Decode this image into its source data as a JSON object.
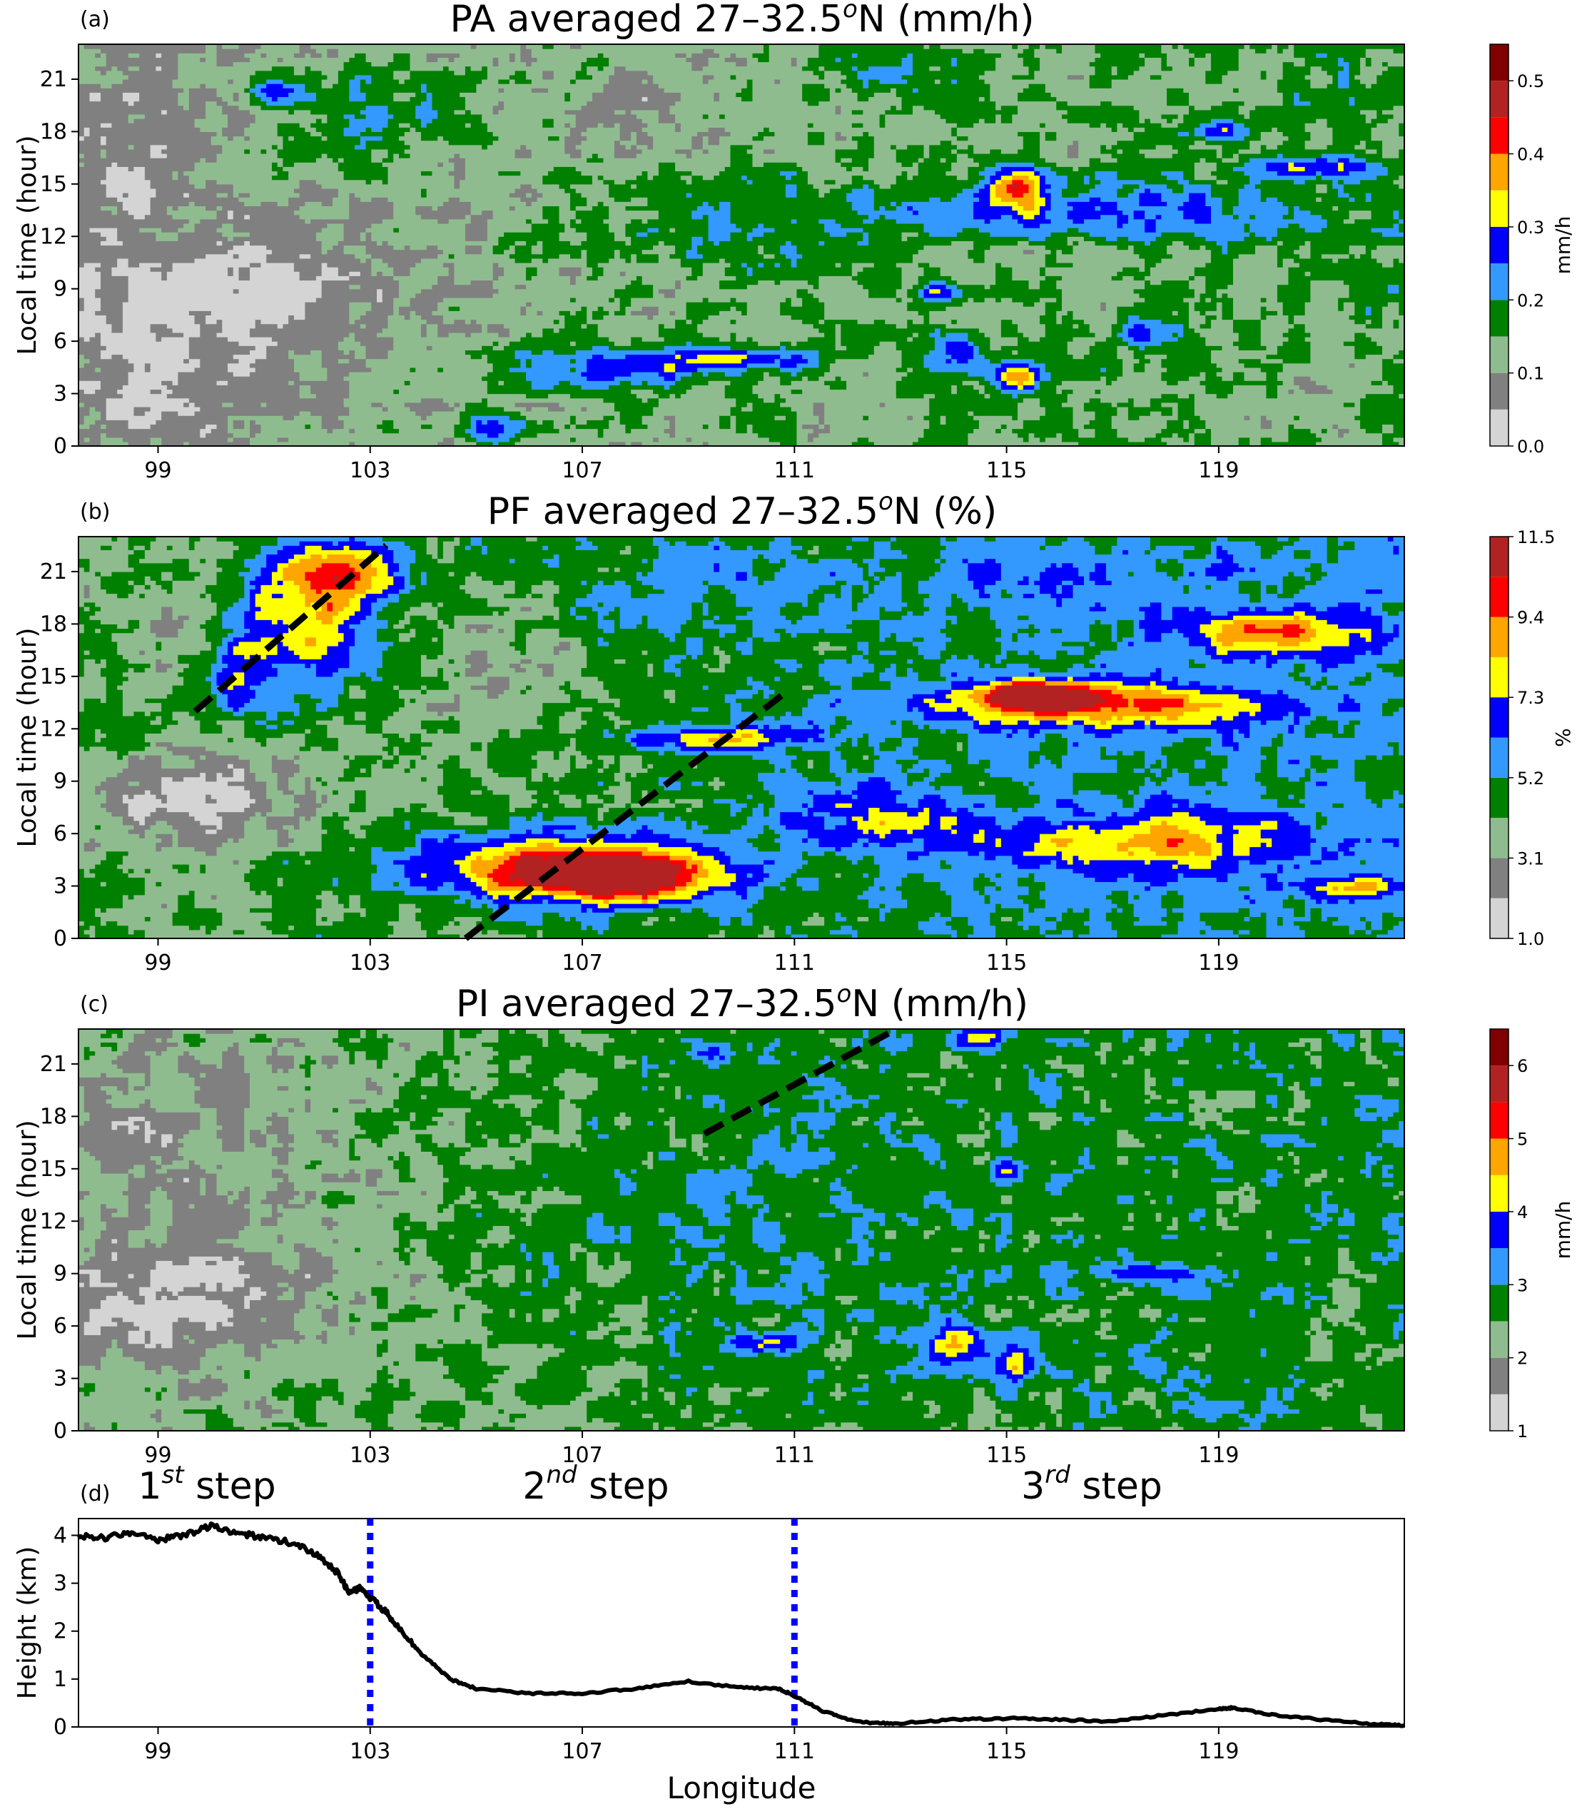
{
  "chart_data": [
    {
      "panel": "a",
      "type": "heatmap",
      "panel_label": "(a)",
      "title": "PA averaged 27–32.5",
      "title_sup": "o",
      "title_suffix": "N (mm/h)",
      "ylabel": "Local time (hour)",
      "xticks": [
        "99",
        "103",
        "107",
        "111",
        "115",
        "119"
      ],
      "yticks": [
        "0",
        "3",
        "6",
        "9",
        "12",
        "15",
        "18",
        "21"
      ],
      "xlim": [
        97.5,
        122.5
      ],
      "ylim": [
        0,
        23
      ],
      "colorbar": {
        "label": "mm/h",
        "ticks": [
          "0.0",
          "0.1",
          "0.2",
          "0.3",
          "0.4",
          "0.5"
        ],
        "levels": [
          0.0,
          0.05,
          0.1,
          0.15,
          0.2,
          0.25,
          0.3,
          0.35,
          0.4,
          0.45,
          0.5,
          0.55
        ],
        "colors": [
          "#d4d4d4",
          "#808080",
          "#8fbc8f",
          "#008000",
          "#3399ff",
          "#0000ff",
          "#ffff00",
          "#ffa500",
          "#ff0000",
          "#b22222",
          "#800000"
        ]
      },
      "field": {
        "base": 2,
        "features": [
          {
            "lon": 100.2,
            "hour": 8.5,
            "rx": 3.0,
            "ry": 3.5,
            "dv": -1.8
          },
          {
            "lon": 99.0,
            "hour": 3.0,
            "rx": 1.8,
            "ry": 3.0,
            "dv": -1.0
          },
          {
            "lon": 98.3,
            "hour": 17,
            "rx": 1.2,
            "ry": 6.0,
            "dv": -0.8
          },
          {
            "lon": 103.0,
            "hour": 19,
            "rx": 1.8,
            "ry": 3.0,
            "dv": 1.8
          },
          {
            "lon": 101.2,
            "hour": 20.5,
            "rx": 0.4,
            "ry": 1.0,
            "dv": 2.5
          },
          {
            "lon": 107.5,
            "hour": 4.5,
            "rx": 2.0,
            "ry": 1.4,
            "dv": 3.0
          },
          {
            "lon": 110.0,
            "hour": 5.0,
            "rx": 1.5,
            "ry": 0.7,
            "dv": 3.2
          },
          {
            "lon": 105.3,
            "hour": 1.0,
            "rx": 0.6,
            "ry": 1.0,
            "dv": 3.0
          },
          {
            "lon": 110.0,
            "hour": 13,
            "rx": 2.5,
            "ry": 3.0,
            "dv": 1.5
          },
          {
            "lon": 116.5,
            "hour": 13.5,
            "rx": 3.5,
            "ry": 1.5,
            "dv": 2.8
          },
          {
            "lon": 115.2,
            "hour": 15.0,
            "rx": 0.5,
            "ry": 1.2,
            "dv": 4.5
          },
          {
            "lon": 115.2,
            "hour": 4.0,
            "rx": 0.4,
            "ry": 0.8,
            "dv": 4.5
          },
          {
            "lon": 114.0,
            "hour": 5.5,
            "rx": 0.7,
            "ry": 1.2,
            "dv": 2.8
          },
          {
            "lon": 120.8,
            "hour": 16.0,
            "rx": 1.3,
            "ry": 0.6,
            "dv": 3.0
          },
          {
            "lon": 119.0,
            "hour": 18.0,
            "rx": 0.6,
            "ry": 0.5,
            "dv": 3.0
          },
          {
            "lon": 117.5,
            "hour": 6.5,
            "rx": 0.5,
            "ry": 0.8,
            "dv": 3.0
          },
          {
            "lon": 113.7,
            "hour": 8.8,
            "rx": 0.4,
            "ry": 0.6,
            "dv": 3.0
          },
          {
            "lon": 121.0,
            "hour": 3.0,
            "rx": 1.5,
            "ry": 3.0,
            "dv": -0.6
          },
          {
            "lon": 108.5,
            "hour": 19.0,
            "rx": 1.5,
            "ry": 3.0,
            "dv": -0.8
          },
          {
            "lon": 113.0,
            "hour": 21.0,
            "rx": 2.0,
            "ry": 2.0,
            "dv": 0.9
          }
        ]
      }
    },
    {
      "panel": "b",
      "type": "heatmap",
      "panel_label": "(b)",
      "title": "PF averaged 27–32.5",
      "title_sup": "o",
      "title_suffix": "N (%)",
      "ylabel": "Local time (hour)",
      "xticks": [
        "99",
        "103",
        "107",
        "111",
        "115",
        "119"
      ],
      "yticks": [
        "0",
        "3",
        "6",
        "9",
        "12",
        "15",
        "18",
        "21"
      ],
      "xlim": [
        97.5,
        122.5
      ],
      "ylim": [
        0,
        23
      ],
      "colorbar": {
        "label": "%",
        "ticks": [
          "1.0",
          "3.1",
          "5.2",
          "7.3",
          "9.4",
          "11.5"
        ],
        "levels": [
          1.0,
          2.05,
          3.1,
          4.15,
          5.2,
          6.25,
          7.3,
          8.35,
          9.4,
          10.45,
          11.5
        ],
        "colors": [
          "#d4d4d4",
          "#808080",
          "#8fbc8f",
          "#008000",
          "#3399ff",
          "#0000ff",
          "#ffff00",
          "#ffa500",
          "#ff0000",
          "#b22222"
        ]
      },
      "field": {
        "base": 3,
        "features": [
          {
            "lon": 99.8,
            "hour": 8.0,
            "rx": 2.2,
            "ry": 2.5,
            "dv": -2.5
          },
          {
            "lon": 99.5,
            "hour": 17.0,
            "rx": 1.5,
            "ry": 3.5,
            "dv": -1.0
          },
          {
            "lon": 101.8,
            "hour": 18.0,
            "rx": 1.3,
            "ry": 3.0,
            "dv": 4.0
          },
          {
            "lon": 102.5,
            "hour": 21.0,
            "rx": 1.2,
            "ry": 1.5,
            "dv": 4.5
          },
          {
            "lon": 100.5,
            "hour": 15.0,
            "rx": 0.7,
            "ry": 2.0,
            "dv": 3.0
          },
          {
            "lon": 106.5,
            "hour": 4.0,
            "rx": 2.5,
            "ry": 1.8,
            "dv": 5.5
          },
          {
            "lon": 108.0,
            "hour": 3.5,
            "rx": 1.6,
            "ry": 1.2,
            "dv": 5.0
          },
          {
            "lon": 109.5,
            "hour": 11.5,
            "rx": 1.8,
            "ry": 0.7,
            "dv": 3.2
          },
          {
            "lon": 116.5,
            "hour": 13.5,
            "rx": 3.0,
            "ry": 1.3,
            "dv": 5.0
          },
          {
            "lon": 115.5,
            "hour": 14.0,
            "rx": 0.8,
            "ry": 0.7,
            "dv": 6.5
          },
          {
            "lon": 120.0,
            "hour": 17.5,
            "rx": 1.6,
            "ry": 1.3,
            "dv": 4.0
          },
          {
            "lon": 117.5,
            "hour": 5.5,
            "rx": 3.0,
            "ry": 1.8,
            "dv": 3.2
          },
          {
            "lon": 121.5,
            "hour": 3.0,
            "rx": 1.0,
            "ry": 0.5,
            "dv": 3.0
          },
          {
            "lon": 112.5,
            "hour": 7.0,
            "rx": 1.5,
            "ry": 2.0,
            "dv": 2.5
          },
          {
            "lon": 105.5,
            "hour": 15.0,
            "rx": 2.0,
            "ry": 5.0,
            "dv": -1.2
          },
          {
            "lon": 108.5,
            "hour": 20.0,
            "rx": 2.0,
            "ry": 3.0,
            "dv": 0.8
          },
          {
            "lon": 115.5,
            "hour": 20.5,
            "rx": 4.0,
            "ry": 2.0,
            "dv": 1.0
          }
        ]
      },
      "dashed_lines": [
        {
          "lon": [
            99.7,
            103.3
          ],
          "hour": [
            13.0,
            22.5
          ]
        },
        {
          "lon": [
            104.8,
            110.8
          ],
          "hour": [
            0.0,
            14.0
          ]
        }
      ]
    },
    {
      "panel": "c",
      "type": "heatmap",
      "panel_label": "(c)",
      "title": "PI averaged 27–32.5",
      "title_sup": "o",
      "title_suffix": "N (mm/h)",
      "ylabel": "Local time (hour)",
      "xticks": [
        "99",
        "103",
        "107",
        "111",
        "115",
        "119"
      ],
      "yticks": [
        "0",
        "3",
        "6",
        "9",
        "12",
        "15",
        "18",
        "21"
      ],
      "xlim": [
        97.5,
        122.5
      ],
      "ylim": [
        0,
        23
      ],
      "colorbar": {
        "label": "mm/h",
        "ticks": [
          "1",
          "2",
          "3",
          "4",
          "5",
          "6"
        ],
        "levels": [
          1,
          1.5,
          2,
          2.5,
          3,
          3.5,
          4,
          4.5,
          5,
          5.5,
          6,
          6.5
        ],
        "colors": [
          "#d4d4d4",
          "#808080",
          "#8fbc8f",
          "#008000",
          "#3399ff",
          "#0000ff",
          "#ffff00",
          "#ffa500",
          "#ff0000",
          "#b22222",
          "#800000"
        ]
      },
      "field": {
        "base": 2.5,
        "features": [
          {
            "lon": 99.5,
            "hour": 7.5,
            "rx": 2.5,
            "ry": 3.5,
            "dv": -2.0
          },
          {
            "lon": 99.5,
            "hour": 17.0,
            "rx": 3.0,
            "ry": 6.0,
            "dv": -0.8
          },
          {
            "lon": 110.5,
            "hour": 12.0,
            "rx": 4.5,
            "ry": 9.0,
            "dv": 0.8
          },
          {
            "lon": 114.0,
            "hour": 5.0,
            "rx": 0.6,
            "ry": 1.2,
            "dv": 3.5
          },
          {
            "lon": 115.2,
            "hour": 4.0,
            "rx": 0.4,
            "ry": 1.0,
            "dv": 3.5
          },
          {
            "lon": 115.0,
            "hour": 15.0,
            "rx": 0.3,
            "ry": 0.6,
            "dv": 3.0
          },
          {
            "lon": 110.5,
            "hour": 5.0,
            "rx": 0.6,
            "ry": 0.5,
            "dv": 3.0
          },
          {
            "lon": 114.5,
            "hour": 22.5,
            "rx": 0.5,
            "ry": 0.6,
            "dv": 3.0
          },
          {
            "lon": 109.5,
            "hour": 21.5,
            "rx": 0.4,
            "ry": 0.7,
            "dv": 2.5
          },
          {
            "lon": 117.5,
            "hour": 9.0,
            "rx": 1.5,
            "ry": 0.5,
            "dv": 2.0
          },
          {
            "lon": 121.5,
            "hour": 5.0,
            "rx": 1.0,
            "ry": 4.0,
            "dv": -0.8
          }
        ]
      },
      "dashed_lines": [
        {
          "lon": [
            109.3,
            112.8
          ],
          "hour": [
            17.0,
            22.8
          ]
        }
      ]
    },
    {
      "panel": "d",
      "type": "line",
      "panel_label": "(d)",
      "ylabel": "Height (km)",
      "xlabel": "Longitude",
      "xticks": [
        "99",
        "103",
        "107",
        "111",
        "115",
        "119"
      ],
      "yticks": [
        "0",
        "1",
        "2",
        "3",
        "4"
      ],
      "xlim": [
        97.5,
        122.5
      ],
      "ylim": [
        0,
        4.35
      ],
      "step_labels": [
        {
          "pre": "1",
          "sup": "st",
          "post": " step"
        },
        {
          "pre": "2",
          "sup": "nd",
          "post": " step"
        },
        {
          "pre": "3",
          "sup": "rd",
          "post": " step"
        }
      ],
      "vlines": [
        103,
        111
      ],
      "series": [
        {
          "x": [
            97.5,
            98.0,
            98.5,
            99.0,
            99.5,
            100.0,
            100.5,
            101.0,
            101.5,
            102.0,
            102.4,
            102.6,
            102.8,
            103.0,
            103.3,
            103.6,
            104.0,
            104.5,
            105.0,
            106.0,
            107.0,
            108.0,
            109.0,
            110.0,
            110.7,
            111.0,
            111.5,
            112.0,
            112.5,
            113.0,
            114.0,
            115.0,
            116.0,
            117.0,
            118.0,
            119.0,
            119.3,
            120.0,
            121.0,
            122.0,
            122.5
          ],
          "y": [
            4.0,
            3.95,
            4.05,
            3.9,
            4.0,
            4.2,
            4.05,
            3.95,
            3.85,
            3.6,
            3.2,
            2.8,
            2.9,
            2.7,
            2.4,
            2.0,
            1.5,
            1.0,
            0.8,
            0.7,
            0.7,
            0.8,
            0.95,
            0.82,
            0.8,
            0.65,
            0.35,
            0.15,
            0.08,
            0.08,
            0.15,
            0.18,
            0.15,
            0.12,
            0.25,
            0.38,
            0.4,
            0.25,
            0.15,
            0.05,
            0.03
          ]
        }
      ]
    }
  ]
}
